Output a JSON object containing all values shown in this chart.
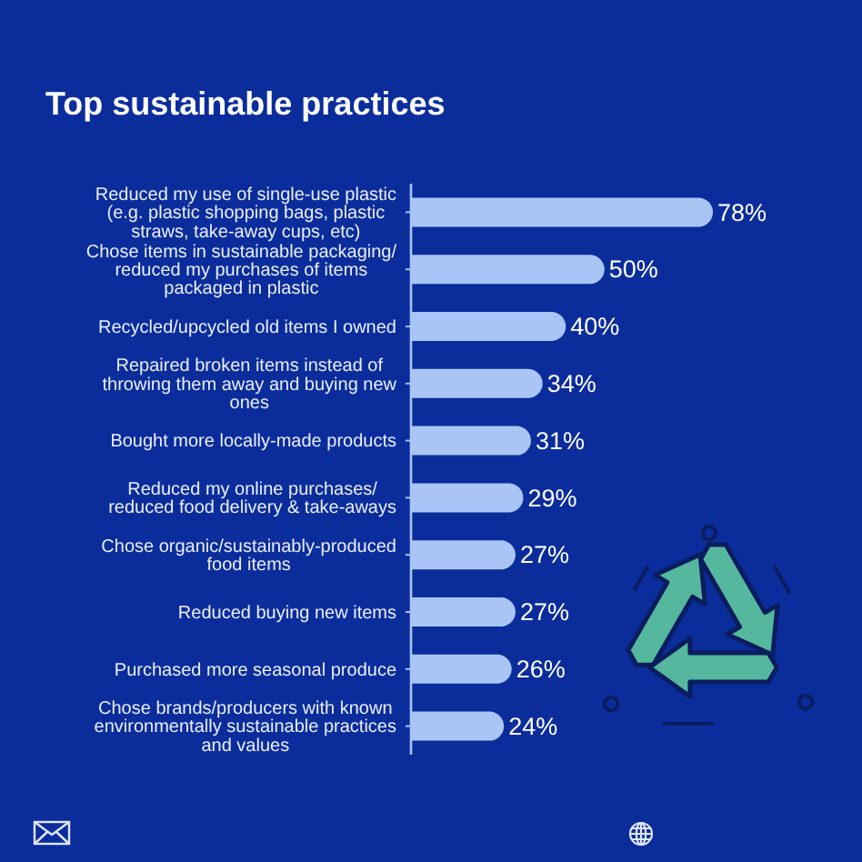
{
  "chart_data": {
    "type": "bar",
    "orientation": "horizontal",
    "title": "Top sustainable practices",
    "categories": [
      "Reduced my use of single-use plastic (e.g. plastic shopping bags, plastic straws, take-away cups, etc)",
      "Chose items in sustainable packaging/ reduced my purchases of items packaged in plastic",
      "Recycled/upcycled old items I owned",
      "Repaired broken items instead of throwing them away and buying new ones",
      "Bought more locally-made products",
      "Reduced my online purchases/ reduced food delivery & take-aways",
      "Chose organic/sustainably-produced food items",
      "Reduced buying new items",
      "Purchased more seasonal produce",
      "Chose brands/producers with known environmentally sustainable practices and values"
    ],
    "values": [
      78,
      50,
      40,
      34,
      31,
      29,
      27,
      27,
      26,
      24
    ],
    "value_labels": [
      "78%",
      "50%",
      "40%",
      "34%",
      "31%",
      "29%",
      "27%",
      "27%",
      "26%",
      "24%"
    ],
    "color": "#a9c5f5",
    "tick_labels": "y"
  }
}
